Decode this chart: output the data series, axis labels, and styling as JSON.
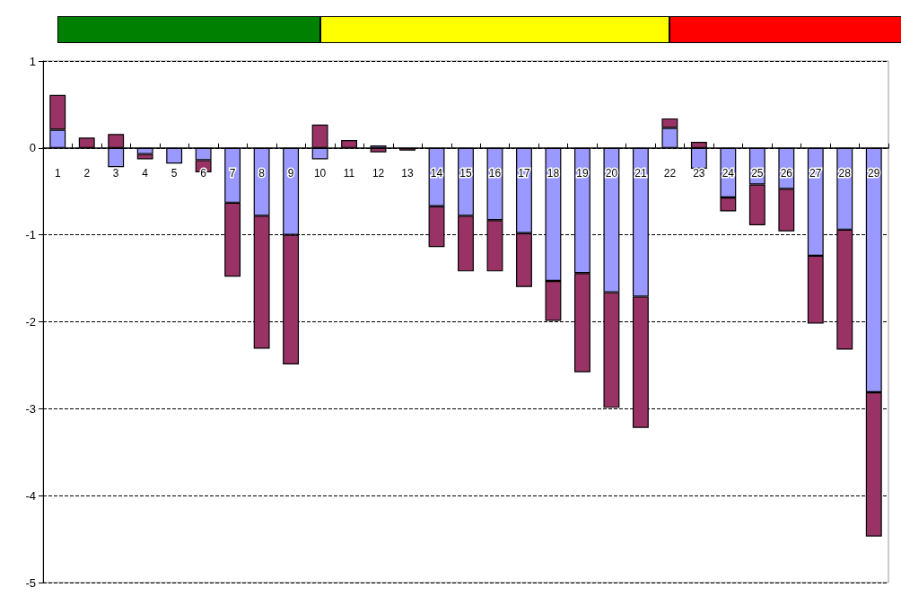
{
  "chart_data": {
    "type": "bar",
    "stacked": true,
    "categories": [
      "1",
      "2",
      "3",
      "4",
      "5",
      "6",
      "7",
      "8",
      "9",
      "10",
      "11",
      "12",
      "13",
      "14",
      "15",
      "16",
      "17",
      "18",
      "19",
      "20",
      "21",
      "22",
      "23",
      "24",
      "25",
      "26",
      "27",
      "28",
      "29"
    ],
    "series": [
      {
        "color": "#9999ff",
        "values": [
          0.21,
          null,
          -0.22,
          -0.07,
          -0.18,
          -0.14,
          -0.63,
          -0.78,
          -1.0,
          -0.13,
          null,
          0.03,
          null,
          -0.67,
          -0.78,
          -0.83,
          -0.98,
          -1.53,
          -1.44,
          -1.66,
          -1.71,
          0.23,
          -0.24,
          -0.57,
          -0.42,
          -0.47,
          -1.24,
          -0.94,
          -2.81
        ]
      },
      {
        "color": "#993366",
        "values": [
          0.4,
          0.12,
          0.16,
          -0.06,
          null,
          -0.14,
          -0.85,
          -1.53,
          -1.49,
          0.27,
          0.09,
          -0.05,
          -0.03,
          -0.47,
          -0.64,
          -0.59,
          -0.62,
          -0.46,
          -1.14,
          -1.33,
          -1.51,
          0.11,
          0.07,
          -0.16,
          -0.47,
          -0.49,
          -0.78,
          -1.38,
          -1.66
        ]
      }
    ],
    "ylim": [
      -5,
      1
    ],
    "yticks": [
      -5,
      -4,
      -3,
      -2,
      -1,
      0,
      1
    ],
    "grid": "y"
  }
}
